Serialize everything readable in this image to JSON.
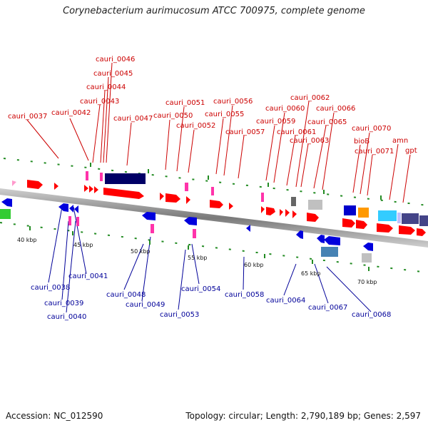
{
  "title": "Corynebacterium aurimucosum ATCC 700975, complete genome",
  "footer": {
    "accession": "Accession: NC_012590",
    "summary": "Topology: circular; Length: 2,790,189 bp; Genes: 2,597"
  },
  "scale_ticks": [
    "40 kbp",
    "45 kbp",
    "50 kbp",
    "55 kbp",
    "60 kbp",
    "65 kbp",
    "70 kbp"
  ],
  "forward_genes": [
    "cauri_0037",
    "cauri_0042",
    "cauri_0043",
    "cauri_0044",
    "cauri_0045",
    "cauri_0046",
    "cauri_0047",
    "cauri_0050",
    "cauri_0051",
    "cauri_0052",
    "cauri_0055",
    "cauri_0056",
    "cauri_0057",
    "cauri_0059",
    "cauri_0060",
    "cauri_0061",
    "cauri_0062",
    "cauri_0063",
    "cauri_0065",
    "cauri_0066",
    "bioB",
    "cauri_0070",
    "cauri_0071",
    "amn",
    "gpt"
  ],
  "reverse_genes": [
    "cauri_0038",
    "cauri_0039",
    "cauri_0040",
    "cauri_0041",
    "cauri_0048",
    "cauri_0049",
    "cauri_0053",
    "cauri_0054",
    "cauri_0058",
    "cauri_0064",
    "cauri_0067",
    "cauri_0068"
  ],
  "colors": {
    "forward_label": "#cc0000",
    "reverse_label": "#000099",
    "backbone": "#8a8a8a",
    "tick": "#228b22"
  }
}
